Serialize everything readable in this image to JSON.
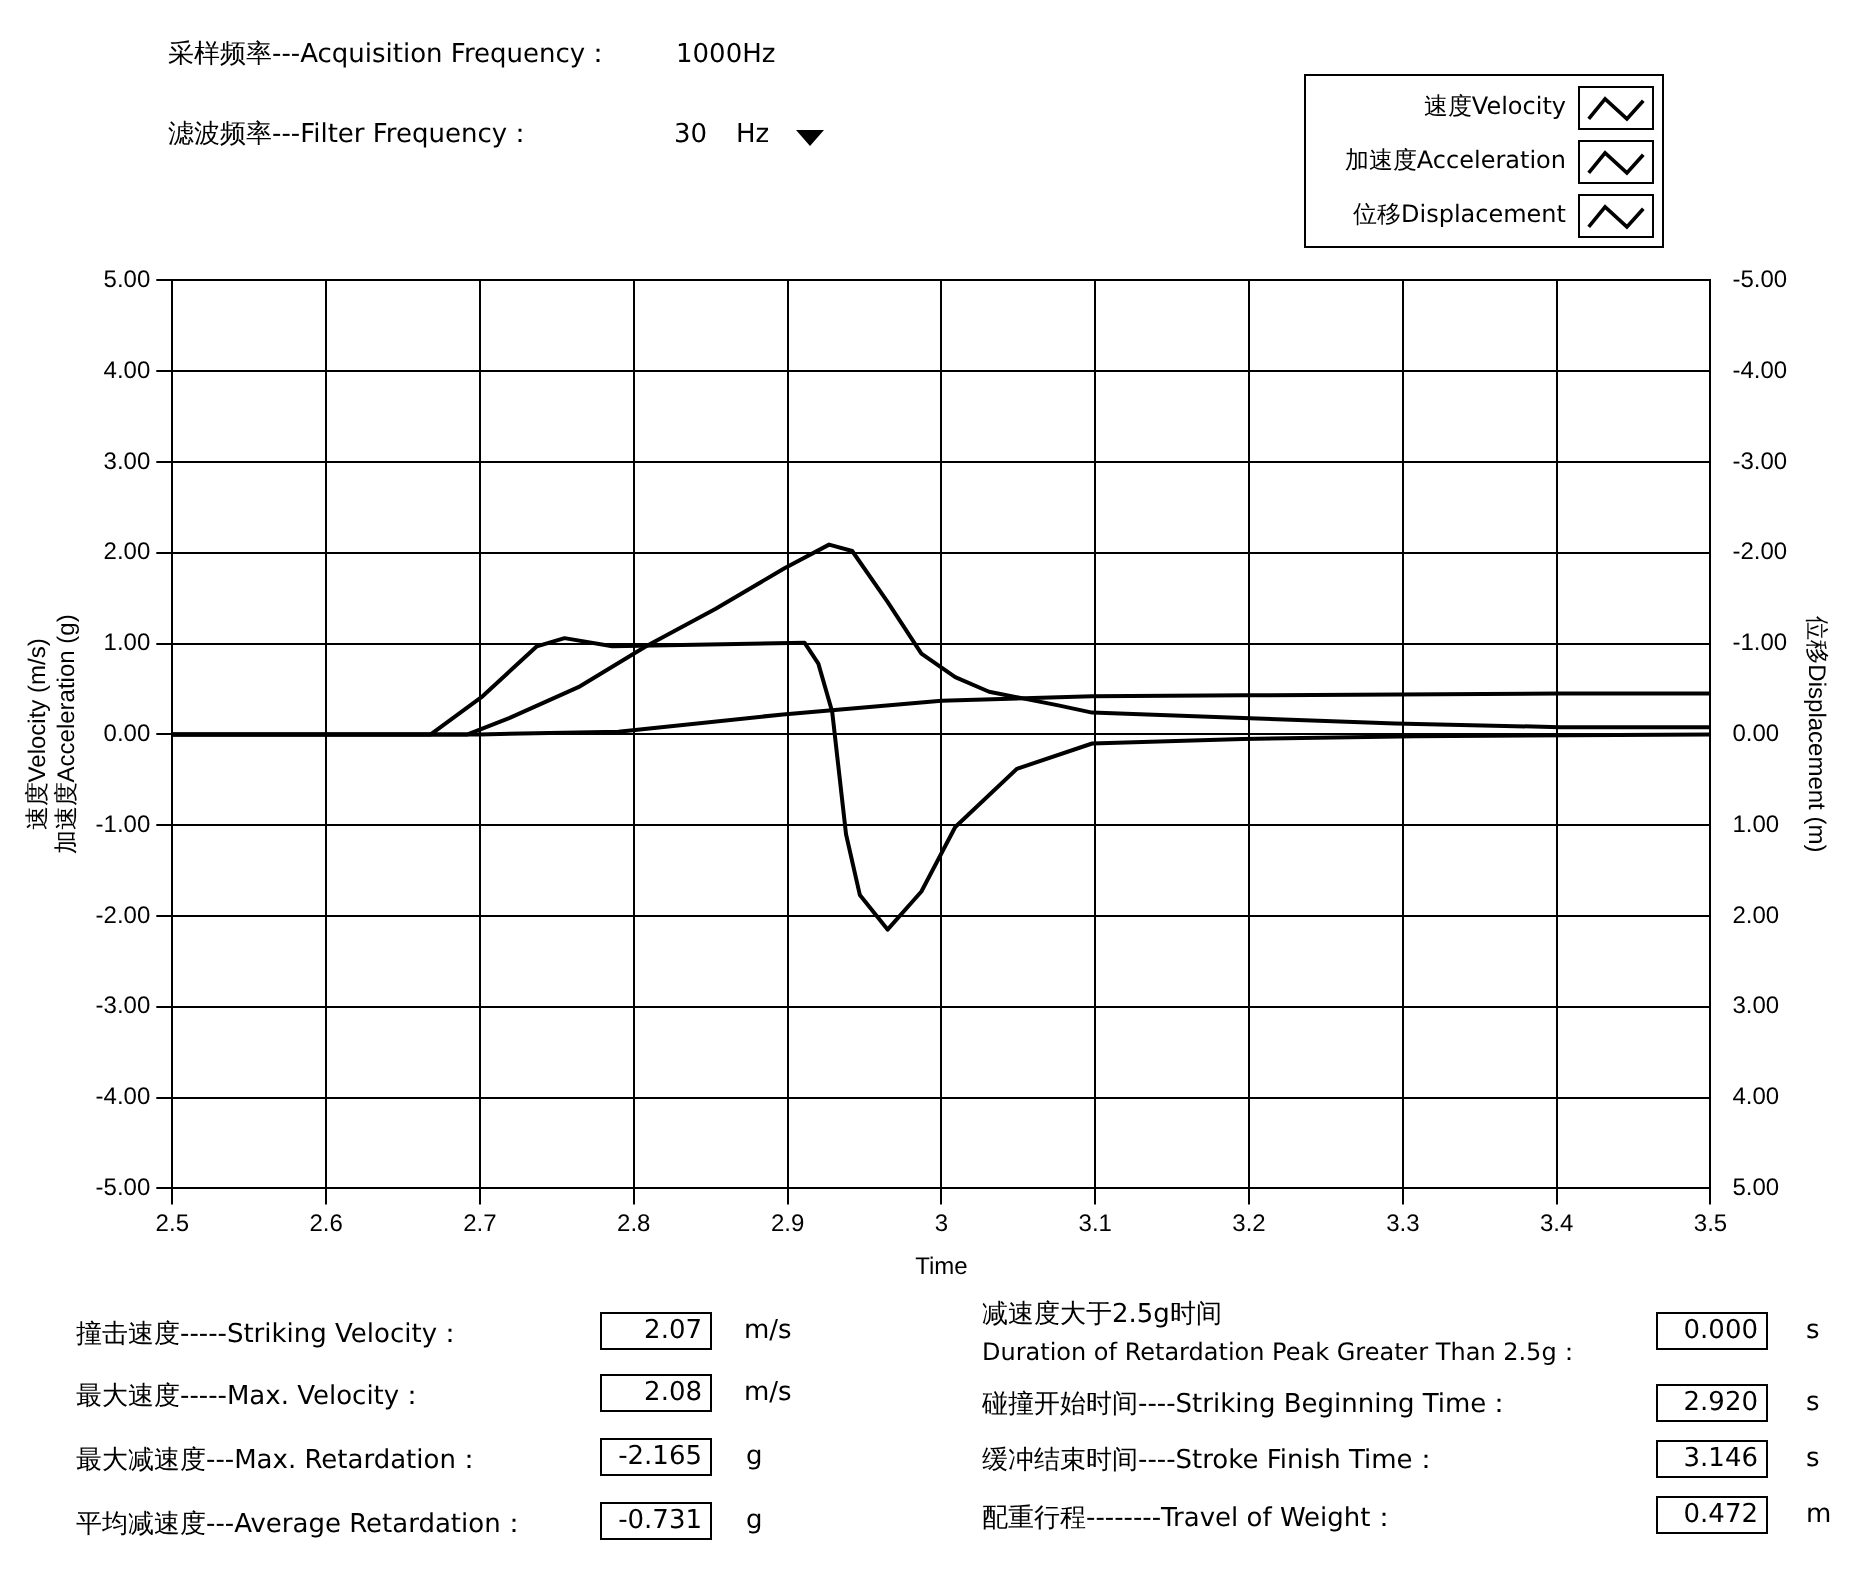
{
  "chart_data": {
    "type": "line",
    "xlabel": "Time",
    "ylabel": "速度Velocity (m/s)\n加速度Acceleration (g)",
    "y2label": "位移Displacement (m)",
    "xlim": [
      2.5,
      3.5
    ],
    "xticks": [
      2.5,
      2.6,
      2.7,
      2.8,
      2.9,
      3,
      3.1,
      3.2,
      3.3,
      3.4,
      3.5
    ],
    "ylim": [
      -5,
      5
    ],
    "yticks": [
      {
        "value": -5,
        "label": "-5.00"
      },
      {
        "value": -4,
        "label": "-4.00"
      },
      {
        "value": -3,
        "label": "-3.00"
      },
      {
        "value": -2,
        "label": "-2.00"
      },
      {
        "value": -1,
        "label": "-1.00"
      },
      {
        "value": 0,
        "label": "0.00"
      },
      {
        "value": 1,
        "label": "1.00"
      },
      {
        "value": 2,
        "label": "2.00"
      },
      {
        "value": 3,
        "label": "3.00"
      },
      {
        "value": 4,
        "label": "4.00"
      },
      {
        "value": 5,
        "label": "5.00"
      }
    ],
    "y2lim": [
      5,
      -5
    ],
    "y2ticks": [
      {
        "value": -5,
        "label": "-5.00"
      },
      {
        "value": -4,
        "label": "-4.00"
      },
      {
        "value": -3,
        "label": "-3.00"
      },
      {
        "value": -2,
        "label": "-2.00"
      },
      {
        "value": -1,
        "label": "-1.00"
      },
      {
        "value": 0,
        "label": "0.00"
      },
      {
        "value": 1,
        "label": "1.00"
      },
      {
        "value": 2,
        "label": "2.00"
      },
      {
        "value": 3,
        "label": "3.00"
      },
      {
        "value": 4,
        "label": "4.00"
      },
      {
        "value": 5,
        "label": "5.00"
      }
    ],
    "grid": true,
    "legend": "top right",
    "series": [
      {
        "name": "速度Velocity",
        "color": "#000000",
        "x": [
          2.5,
          2.692,
          2.719,
          2.764,
          2.808,
          2.853,
          2.898,
          2.927,
          2.942,
          2.965,
          2.987,
          3.009,
          3.031,
          3.076,
          3.098,
          3.196,
          3.295,
          3.402,
          3.5
        ],
        "values": [
          0,
          0,
          0.18,
          0.52,
          0.97,
          1.38,
          1.83,
          2.09,
          2.02,
          1.46,
          0.89,
          0.63,
          0.47,
          0.32,
          0.24,
          0.18,
          0.12,
          0.08,
          0.08
        ]
      },
      {
        "name": "加速度Acceleration",
        "color": "#000000",
        "x": [
          2.5,
          2.668,
          2.701,
          2.737,
          2.755,
          2.786,
          2.911,
          2.92,
          2.929,
          2.938,
          2.947,
          2.965,
          2.987,
          3.009,
          3.049,
          3.098,
          3.196,
          3.308,
          3.5
        ],
        "values": [
          0,
          0,
          0.41,
          0.97,
          1.06,
          0.97,
          1.01,
          0.78,
          0.25,
          -1.1,
          -1.77,
          -2.15,
          -1.73,
          -1.02,
          -0.38,
          -0.1,
          -0.05,
          -0.02,
          0
        ]
      },
      {
        "name": "位移Displacement",
        "color": "#000000",
        "axis": "y2",
        "x": [
          2.5,
          2.7,
          2.79,
          2.897,
          3.0,
          3.098,
          3.196,
          3.402,
          3.5
        ],
        "values": [
          0,
          0,
          -0.03,
          -0.22,
          -0.37,
          -0.42,
          -0.43,
          -0.45,
          -0.45
        ]
      }
    ],
    "annotations": [
      "采样频率---Acquisition Frequency：",
      "1000Hz",
      "滤波频率---Filter Frequency：",
      "30",
      "Hz",
      "撞击速度-----Striking Velocity：",
      "2.07",
      "m/s",
      "最大速度-----Max. Velocity：",
      "2.08",
      "m/s",
      "最大减速度---Max. Retardation：",
      "-2.165",
      "g",
      "平均减速度---Average Retardation：",
      "-0.731",
      "g",
      "减速度大于2.5g时间",
      "Duration of Retardation Peak Greater Than 2.5g：",
      "0.000",
      "s",
      "碰撞开始时间----Striking Beginning Time：",
      "2.920",
      "s",
      "缓冲结束时间----Stroke Finish Time：",
      "3.146",
      "s",
      "配重行程--------Travel of Weight：",
      "0.472",
      "m"
    ]
  }
}
